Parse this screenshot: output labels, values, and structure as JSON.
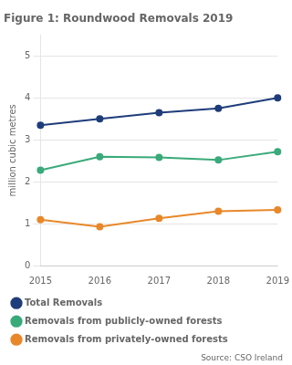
{
  "chart_data": {
    "type": "line",
    "title": "Figure 1: Roundwood Removals 2019",
    "categories": [
      "2015",
      "2016",
      "2017",
      "2018",
      "2019"
    ],
    "series": [
      {
        "name": "Total Removals",
        "color": "#1f3d7a",
        "marker": "circle",
        "values": [
          3.35,
          3.5,
          3.65,
          3.75,
          4.0
        ]
      },
      {
        "name": "Removals from publicly-owned forests",
        "color": "#3aaa7a",
        "marker": "circle",
        "values": [
          2.28,
          2.6,
          2.58,
          2.52,
          2.72
        ]
      },
      {
        "name": "Removals from privately-owned forests",
        "color": "#e8882a",
        "marker": "circle",
        "values": [
          1.1,
          0.93,
          1.13,
          1.3,
          1.33
        ]
      }
    ],
    "ylabel": "million cubic metres",
    "ylim": [
      0,
      5.5
    ],
    "yticks": [
      0,
      1,
      2,
      3,
      4,
      5
    ],
    "grid": "y",
    "legend": "bottom",
    "annotations": [
      "Source: CSO Ireland"
    ]
  }
}
